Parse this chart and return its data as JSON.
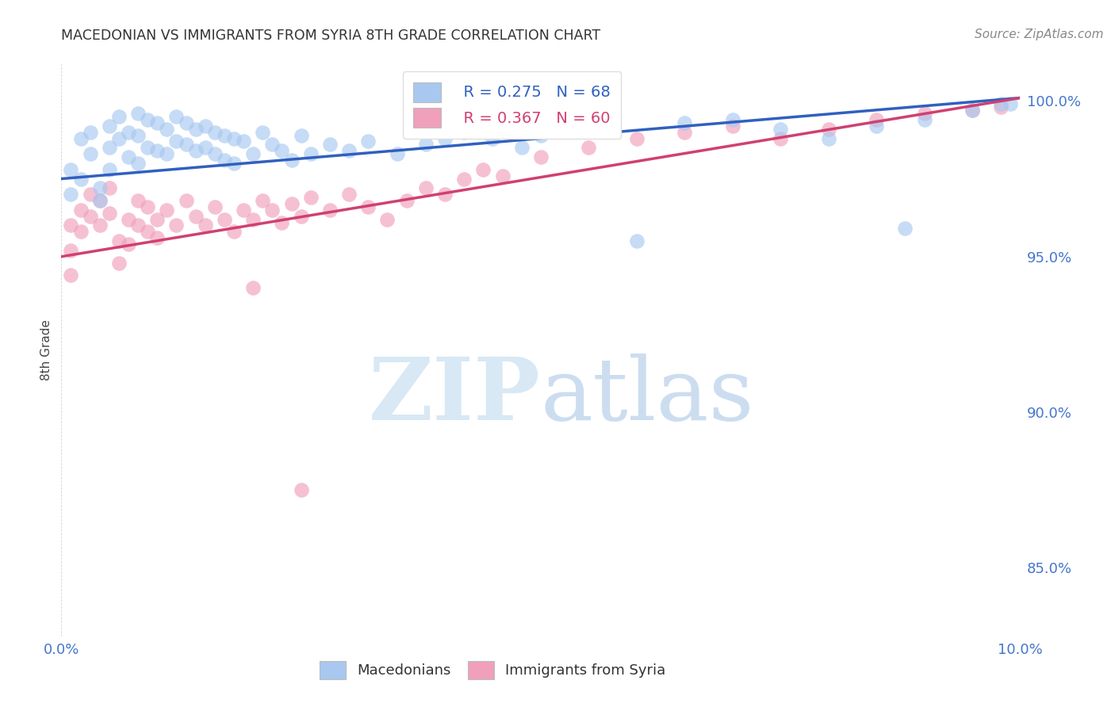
{
  "title": "MACEDONIAN VS IMMIGRANTS FROM SYRIA 8TH GRADE CORRELATION CHART",
  "source": "Source: ZipAtlas.com",
  "ylabel": "8th Grade",
  "ytick_labels": [
    "85.0%",
    "90.0%",
    "95.0%",
    "100.0%"
  ],
  "ytick_values": [
    0.85,
    0.9,
    0.95,
    1.0
  ],
  "xlim": [
    0.0,
    0.1
  ],
  "ylim": [
    0.828,
    1.012
  ],
  "legend_blue_r": "R = 0.275",
  "legend_blue_n": "N = 68",
  "legend_pink_r": "R = 0.367",
  "legend_pink_n": "N = 60",
  "blue_color": "#A8C8F0",
  "pink_color": "#F0A0BA",
  "line_blue_color": "#3060C0",
  "line_pink_color": "#D04070",
  "title_color": "#333333",
  "source_color": "#888888",
  "axis_label_color": "#4477CC",
  "grid_color": "#CCCCCC",
  "background_color": "#FFFFFF",
  "blue_scatter_x": [
    0.001,
    0.001,
    0.002,
    0.002,
    0.003,
    0.003,
    0.004,
    0.004,
    0.005,
    0.005,
    0.005,
    0.006,
    0.006,
    0.007,
    0.007,
    0.008,
    0.008,
    0.008,
    0.009,
    0.009,
    0.01,
    0.01,
    0.011,
    0.011,
    0.012,
    0.012,
    0.013,
    0.013,
    0.014,
    0.014,
    0.015,
    0.015,
    0.016,
    0.016,
    0.017,
    0.017,
    0.018,
    0.018,
    0.019,
    0.02,
    0.021,
    0.022,
    0.023,
    0.024,
    0.025,
    0.026,
    0.028,
    0.03,
    0.032,
    0.035,
    0.038,
    0.04,
    0.042,
    0.045,
    0.048,
    0.05,
    0.055,
    0.06,
    0.065,
    0.07,
    0.075,
    0.08,
    0.085,
    0.088,
    0.09,
    0.095,
    0.098,
    0.099
  ],
  "blue_scatter_y": [
    0.978,
    0.97,
    0.988,
    0.975,
    0.99,
    0.983,
    0.972,
    0.968,
    0.992,
    0.985,
    0.978,
    0.995,
    0.988,
    0.99,
    0.982,
    0.996,
    0.989,
    0.98,
    0.994,
    0.985,
    0.993,
    0.984,
    0.991,
    0.983,
    0.995,
    0.987,
    0.993,
    0.986,
    0.991,
    0.984,
    0.992,
    0.985,
    0.99,
    0.983,
    0.989,
    0.981,
    0.988,
    0.98,
    0.987,
    0.983,
    0.99,
    0.986,
    0.984,
    0.981,
    0.989,
    0.983,
    0.986,
    0.984,
    0.987,
    0.983,
    0.986,
    0.988,
    0.99,
    0.988,
    0.985,
    0.989,
    0.991,
    0.955,
    0.993,
    0.994,
    0.991,
    0.988,
    0.992,
    0.959,
    0.994,
    0.997,
    0.999,
    0.999
  ],
  "pink_scatter_x": [
    0.001,
    0.001,
    0.001,
    0.002,
    0.002,
    0.003,
    0.003,
    0.004,
    0.004,
    0.005,
    0.005,
    0.006,
    0.006,
    0.007,
    0.007,
    0.008,
    0.008,
    0.009,
    0.009,
    0.01,
    0.01,
    0.011,
    0.012,
    0.013,
    0.014,
    0.015,
    0.016,
    0.017,
    0.018,
    0.019,
    0.02,
    0.021,
    0.022,
    0.023,
    0.024,
    0.025,
    0.026,
    0.028,
    0.03,
    0.032,
    0.034,
    0.036,
    0.038,
    0.04,
    0.042,
    0.044,
    0.046,
    0.05,
    0.055,
    0.06,
    0.065,
    0.07,
    0.075,
    0.08,
    0.085,
    0.09,
    0.095,
    0.098,
    0.02,
    0.025
  ],
  "pink_scatter_y": [
    0.96,
    0.952,
    0.944,
    0.965,
    0.958,
    0.97,
    0.963,
    0.968,
    0.96,
    0.972,
    0.964,
    0.955,
    0.948,
    0.962,
    0.954,
    0.968,
    0.96,
    0.966,
    0.958,
    0.962,
    0.956,
    0.965,
    0.96,
    0.968,
    0.963,
    0.96,
    0.966,
    0.962,
    0.958,
    0.965,
    0.962,
    0.968,
    0.965,
    0.961,
    0.967,
    0.963,
    0.969,
    0.965,
    0.97,
    0.966,
    0.962,
    0.968,
    0.972,
    0.97,
    0.975,
    0.978,
    0.976,
    0.982,
    0.985,
    0.988,
    0.99,
    0.992,
    0.988,
    0.991,
    0.994,
    0.996,
    0.997,
    0.998,
    0.94,
    0.875
  ],
  "blue_line_x0": 0.0,
  "blue_line_x1": 0.1,
  "blue_line_y0": 0.975,
  "blue_line_y1": 1.001,
  "pink_line_x0": 0.0,
  "pink_line_x1": 0.1,
  "pink_line_y0": 0.95,
  "pink_line_y1": 1.001
}
